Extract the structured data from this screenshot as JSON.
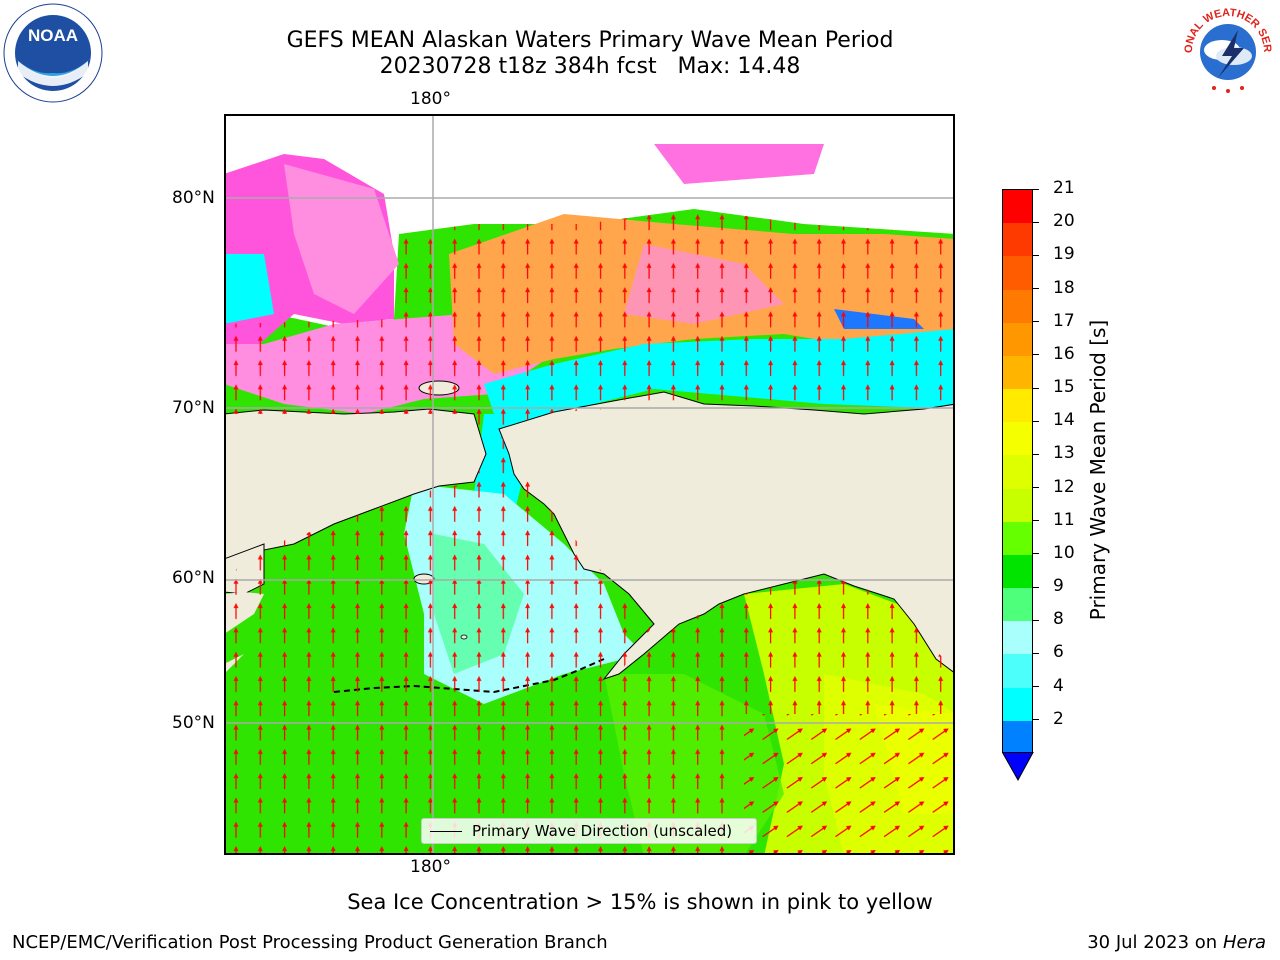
{
  "title": {
    "line1": "GEFS MEAN Alaskan Waters Primary Wave Mean Period",
    "line2": "20230728 t18z 384h fcst   Max: 14.48"
  },
  "map": {
    "lon_label_top": "180°",
    "lon_label_bottom": "180°",
    "lat_labels": [
      "80°N",
      "70°N",
      "60°N",
      "50°N"
    ],
    "legend_text": "Primary Wave Direction (unscaled)",
    "land_color": "#efecdc",
    "arrow_color": "#ff0000"
  },
  "colorbar": {
    "label": "Primary Wave Mean Period [s]",
    "ticks": [
      "21",
      "20",
      "19",
      "18",
      "17",
      "16",
      "15",
      "14",
      "13",
      "12",
      "11",
      "10",
      "9",
      "8",
      "6",
      "4",
      "2"
    ],
    "colors": [
      "#ff0000",
      "#ff3a00",
      "#ff5c00",
      "#ff7a00",
      "#ff9700",
      "#ffb400",
      "#ffea00",
      "#f5ff00",
      "#ddff00",
      "#c8ff00",
      "#66ff00",
      "#00e400",
      "#4dff7a",
      "#a8fffb",
      "#4dfffb",
      "#00ffff",
      "#0081ff"
    ],
    "extend_color": "#0000ff"
  },
  "logos": {
    "noaa": "NOAA",
    "nws": "NATIONAL WEATHER SERVICE"
  },
  "notes": {
    "ice": "Sea Ice Concentration > 15% is shown in pink to yellow",
    "footer_left": "NCEP/EMC/Verification Post Processing Product Generation Branch",
    "footer_right_prefix": "30 Jul 2023 on ",
    "footer_right_italic": "Hera"
  }
}
